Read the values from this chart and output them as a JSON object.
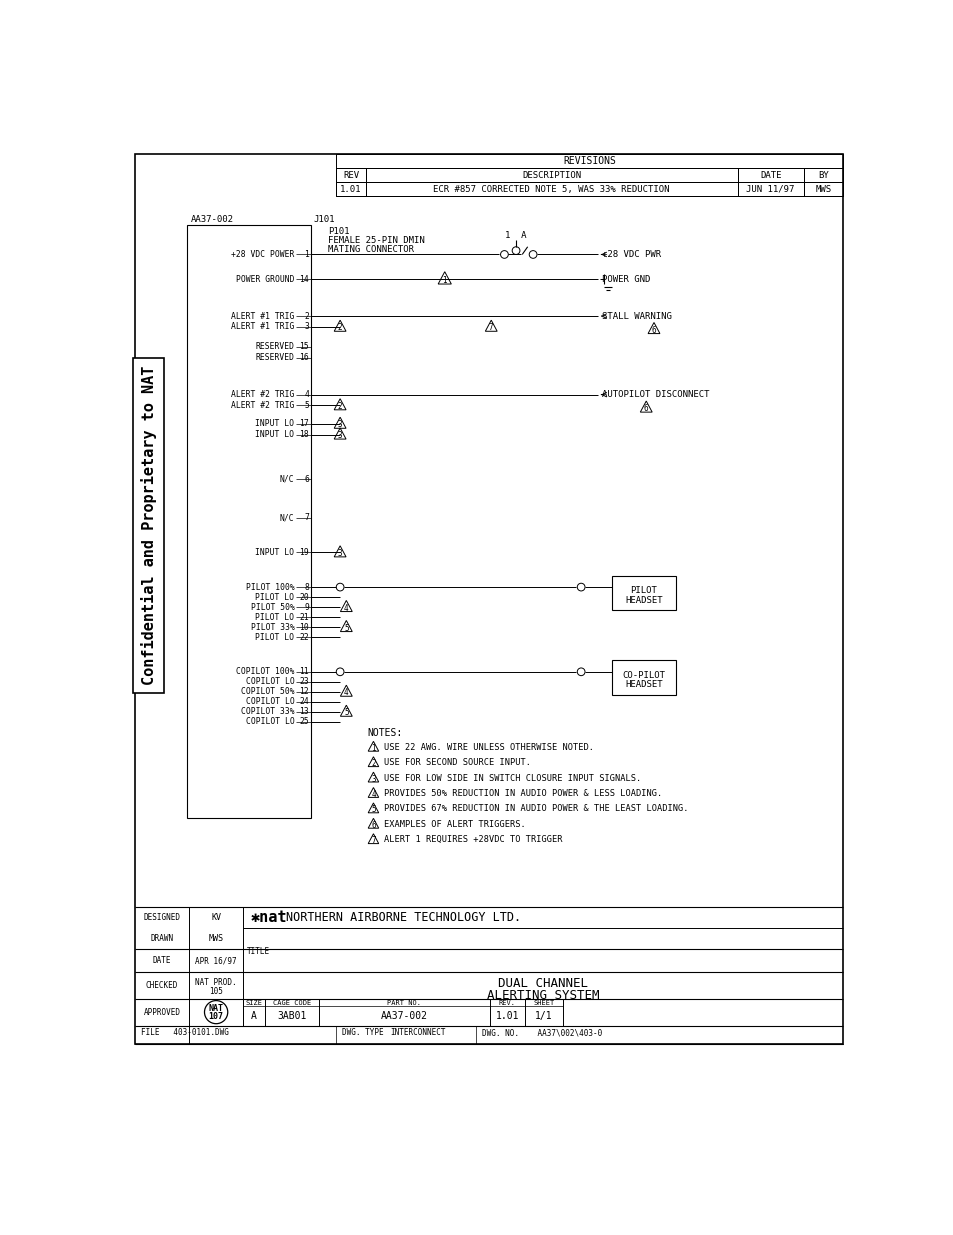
{
  "bg_color": "#ffffff",
  "revisions_header": "REVISIONS",
  "rev_cols": [
    "REV",
    "DESCRIPTION",
    "DATE",
    "BY"
  ],
  "rev_row": [
    "1.01",
    "ECR #857 CORRECTED NOTE 5, WAS 33% REDUCTION",
    "JUN 11/97",
    "MWS"
  ],
  "connector_label": "AA37-002",
  "j101_label": "J101",
  "watermark": "Confidential and Proprietary to NAT",
  "tb_company": "NORTHERN AIRBORNE TECHNOLOGY LTD.",
  "tb_dwgno_val": "AA37\\002\\403-0"
}
